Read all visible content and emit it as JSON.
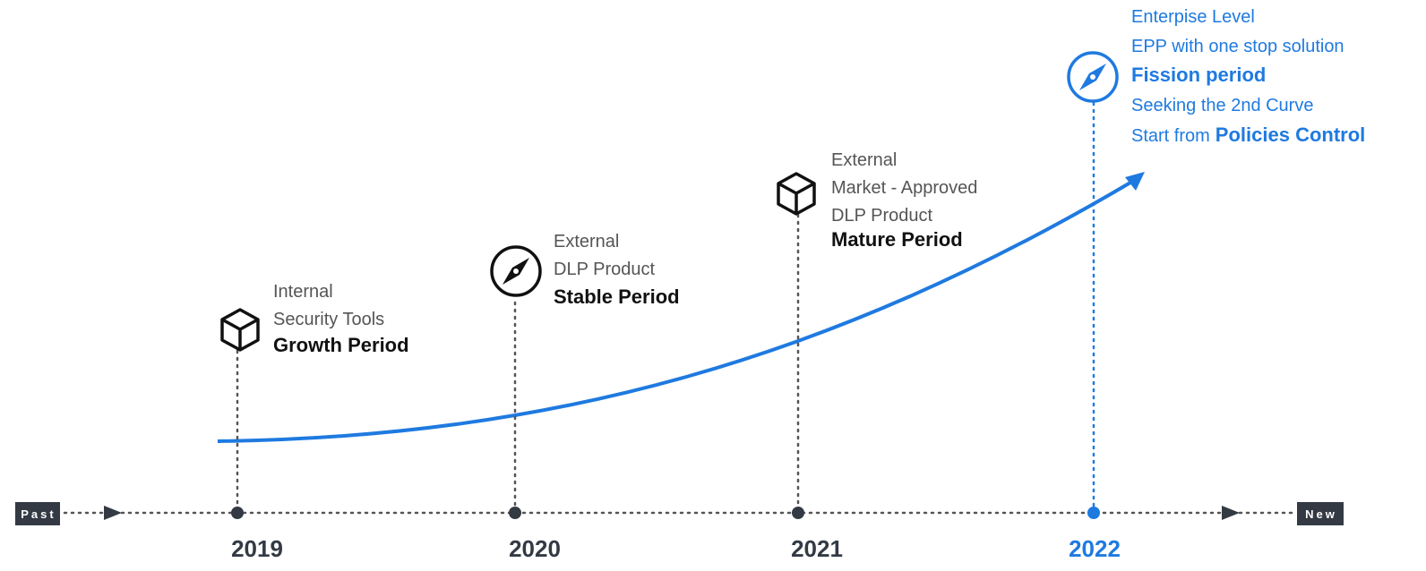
{
  "timeline": {
    "start": "Past",
    "end": "New"
  },
  "milestones": [
    {
      "year": "2019",
      "lines": [
        "Internal",
        "Security Tools"
      ],
      "period": "Growth Period"
    },
    {
      "year": "2020",
      "lines": [
        "External",
        "DLP Product"
      ],
      "period": "Stable Period"
    },
    {
      "year": "2021",
      "lines": [
        "External",
        "Market - Approved",
        "DLP Product"
      ],
      "period": "Mature Period"
    },
    {
      "year": "2022",
      "lines": [
        "Enterpise Level",
        "EPP with one stop solution"
      ],
      "period": "Fission period",
      "after": [
        "Seeking the 2nd Curve"
      ],
      "last_prefix": "Start from",
      "last_bold": "Policies Control"
    }
  ]
}
